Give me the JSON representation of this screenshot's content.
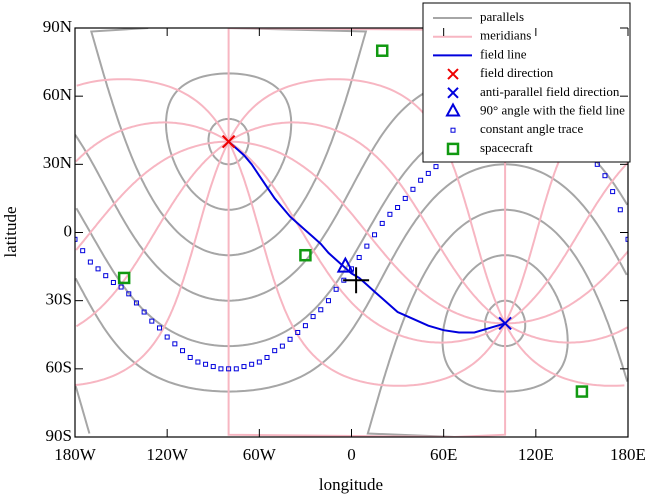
{
  "chart_data": {
    "type": "line",
    "xlabel": "longitude",
    "ylabel": "latitude",
    "xlim": [
      -180,
      180
    ],
    "ylim": [
      -90,
      90
    ],
    "xticks": [
      {
        "value": -180,
        "label": "180W"
      },
      {
        "value": -120,
        "label": "120W"
      },
      {
        "value": -60,
        "label": "60W"
      },
      0,
      {
        "value": 60,
        "label": "60E"
      },
      {
        "value": 120,
        "label": "120E"
      },
      {
        "value": 180,
        "label": "180E"
      }
    ],
    "yticks": [
      {
        "value": -90,
        "label": "90S"
      },
      {
        "value": -60,
        "label": "60S"
      },
      {
        "value": -30,
        "label": "30S"
      },
      0,
      {
        "value": 30,
        "label": "30N"
      },
      {
        "value": 60,
        "label": "60N"
      },
      {
        "value": 90,
        "label": "90N"
      }
    ],
    "legend": "upper right",
    "series": [
      {
        "name": "parallels",
        "kind": "parallels",
        "color": "#a6a6a6",
        "pole": [
          -80,
          40
        ],
        "colatitudes": [
          10,
          30,
          50,
          70,
          90,
          110,
          130,
          150,
          170
        ]
      },
      {
        "name": "meridians",
        "kind": "meridians",
        "color": "#f7b6c2",
        "pole": [
          -80,
          40
        ],
        "bearings": [
          0,
          30,
          60,
          90,
          120,
          150,
          180,
          210,
          240,
          270,
          300,
          330
        ]
      },
      {
        "name": "field line",
        "kind": "line",
        "color": "#0000dd",
        "x": [
          -80,
          -75,
          -70,
          -65,
          -60,
          -55,
          -50,
          -45,
          -40,
          -35,
          -30,
          -25,
          -20,
          -15,
          -10,
          -5,
          0,
          5,
          10,
          15,
          20,
          30,
          40,
          50,
          60,
          70,
          80,
          90,
          100
        ],
        "y": [
          40,
          37,
          34,
          30,
          25,
          20,
          15,
          11,
          7,
          4,
          1,
          -2,
          -5,
          -9,
          -12,
          -15,
          -18,
          -20,
          -23,
          -26,
          -29,
          -35,
          -38,
          -41,
          -43,
          -44,
          -44,
          -42,
          -40
        ]
      },
      {
        "name": "field direction",
        "kind": "x",
        "color": "#ee0000",
        "x": [
          -80
        ],
        "y": [
          40
        ]
      },
      {
        "name": "anti-parallel field direction",
        "kind": "x",
        "color": "#0000dd",
        "x": [
          100
        ],
        "y": [
          -40
        ]
      },
      {
        "name": "90° angle with the field line",
        "kind": "triangle",
        "color": "#0000dd",
        "x": [
          -4
        ],
        "y": [
          -15
        ]
      },
      {
        "name": "constant angle trace",
        "kind": "dots",
        "color": "#0000dd",
        "x": [
          -180,
          -175,
          -170,
          -165,
          -160,
          -155,
          -150,
          -145,
          -140,
          -135,
          -130,
          -125,
          -120,
          -115,
          -110,
          -105,
          -100,
          -95,
          -90,
          -85,
          -80,
          -75,
          -70,
          -65,
          -60,
          -55,
          -50,
          -45,
          -40,
          -35,
          -30,
          -25,
          -20,
          -15,
          -10,
          -5,
          0,
          5,
          10,
          15,
          20,
          25,
          30,
          35,
          40,
          45,
          50,
          55,
          60,
          65,
          70,
          75,
          80,
          85,
          90,
          95,
          100,
          105,
          110,
          115,
          120,
          125,
          130,
          135,
          140,
          145,
          150,
          155,
          160,
          165,
          170,
          175,
          180
        ],
        "y": [
          -3,
          -8,
          -13,
          -16,
          -19,
          -22,
          -24,
          -27,
          -31,
          -35,
          -39,
          -42,
          -46,
          -49,
          -52,
          -55,
          -57,
          -58,
          -59,
          -60,
          -60,
          -60,
          -59,
          -58,
          -57,
          -55,
          -52,
          -50,
          -47,
          -44,
          -41,
          -37,
          -34,
          -30,
          -25,
          -21,
          -16,
          -11,
          -6,
          -1,
          4,
          8,
          11,
          15,
          19,
          23,
          26,
          29,
          32,
          37,
          42,
          46,
          50,
          53,
          55,
          57,
          58,
          58,
          57,
          56,
          54,
          52,
          50,
          47,
          44,
          42,
          39,
          35,
          30,
          25,
          18,
          10,
          -3
        ]
      },
      {
        "name": "spacecraft",
        "kind": "square",
        "color": "#119911",
        "x": [
          -148,
          -30,
          20,
          150
        ],
        "y": [
          -20,
          -10,
          80,
          -70
        ]
      }
    ],
    "crosshair": {
      "x": 3,
      "y": -21,
      "color": "#000000"
    }
  }
}
